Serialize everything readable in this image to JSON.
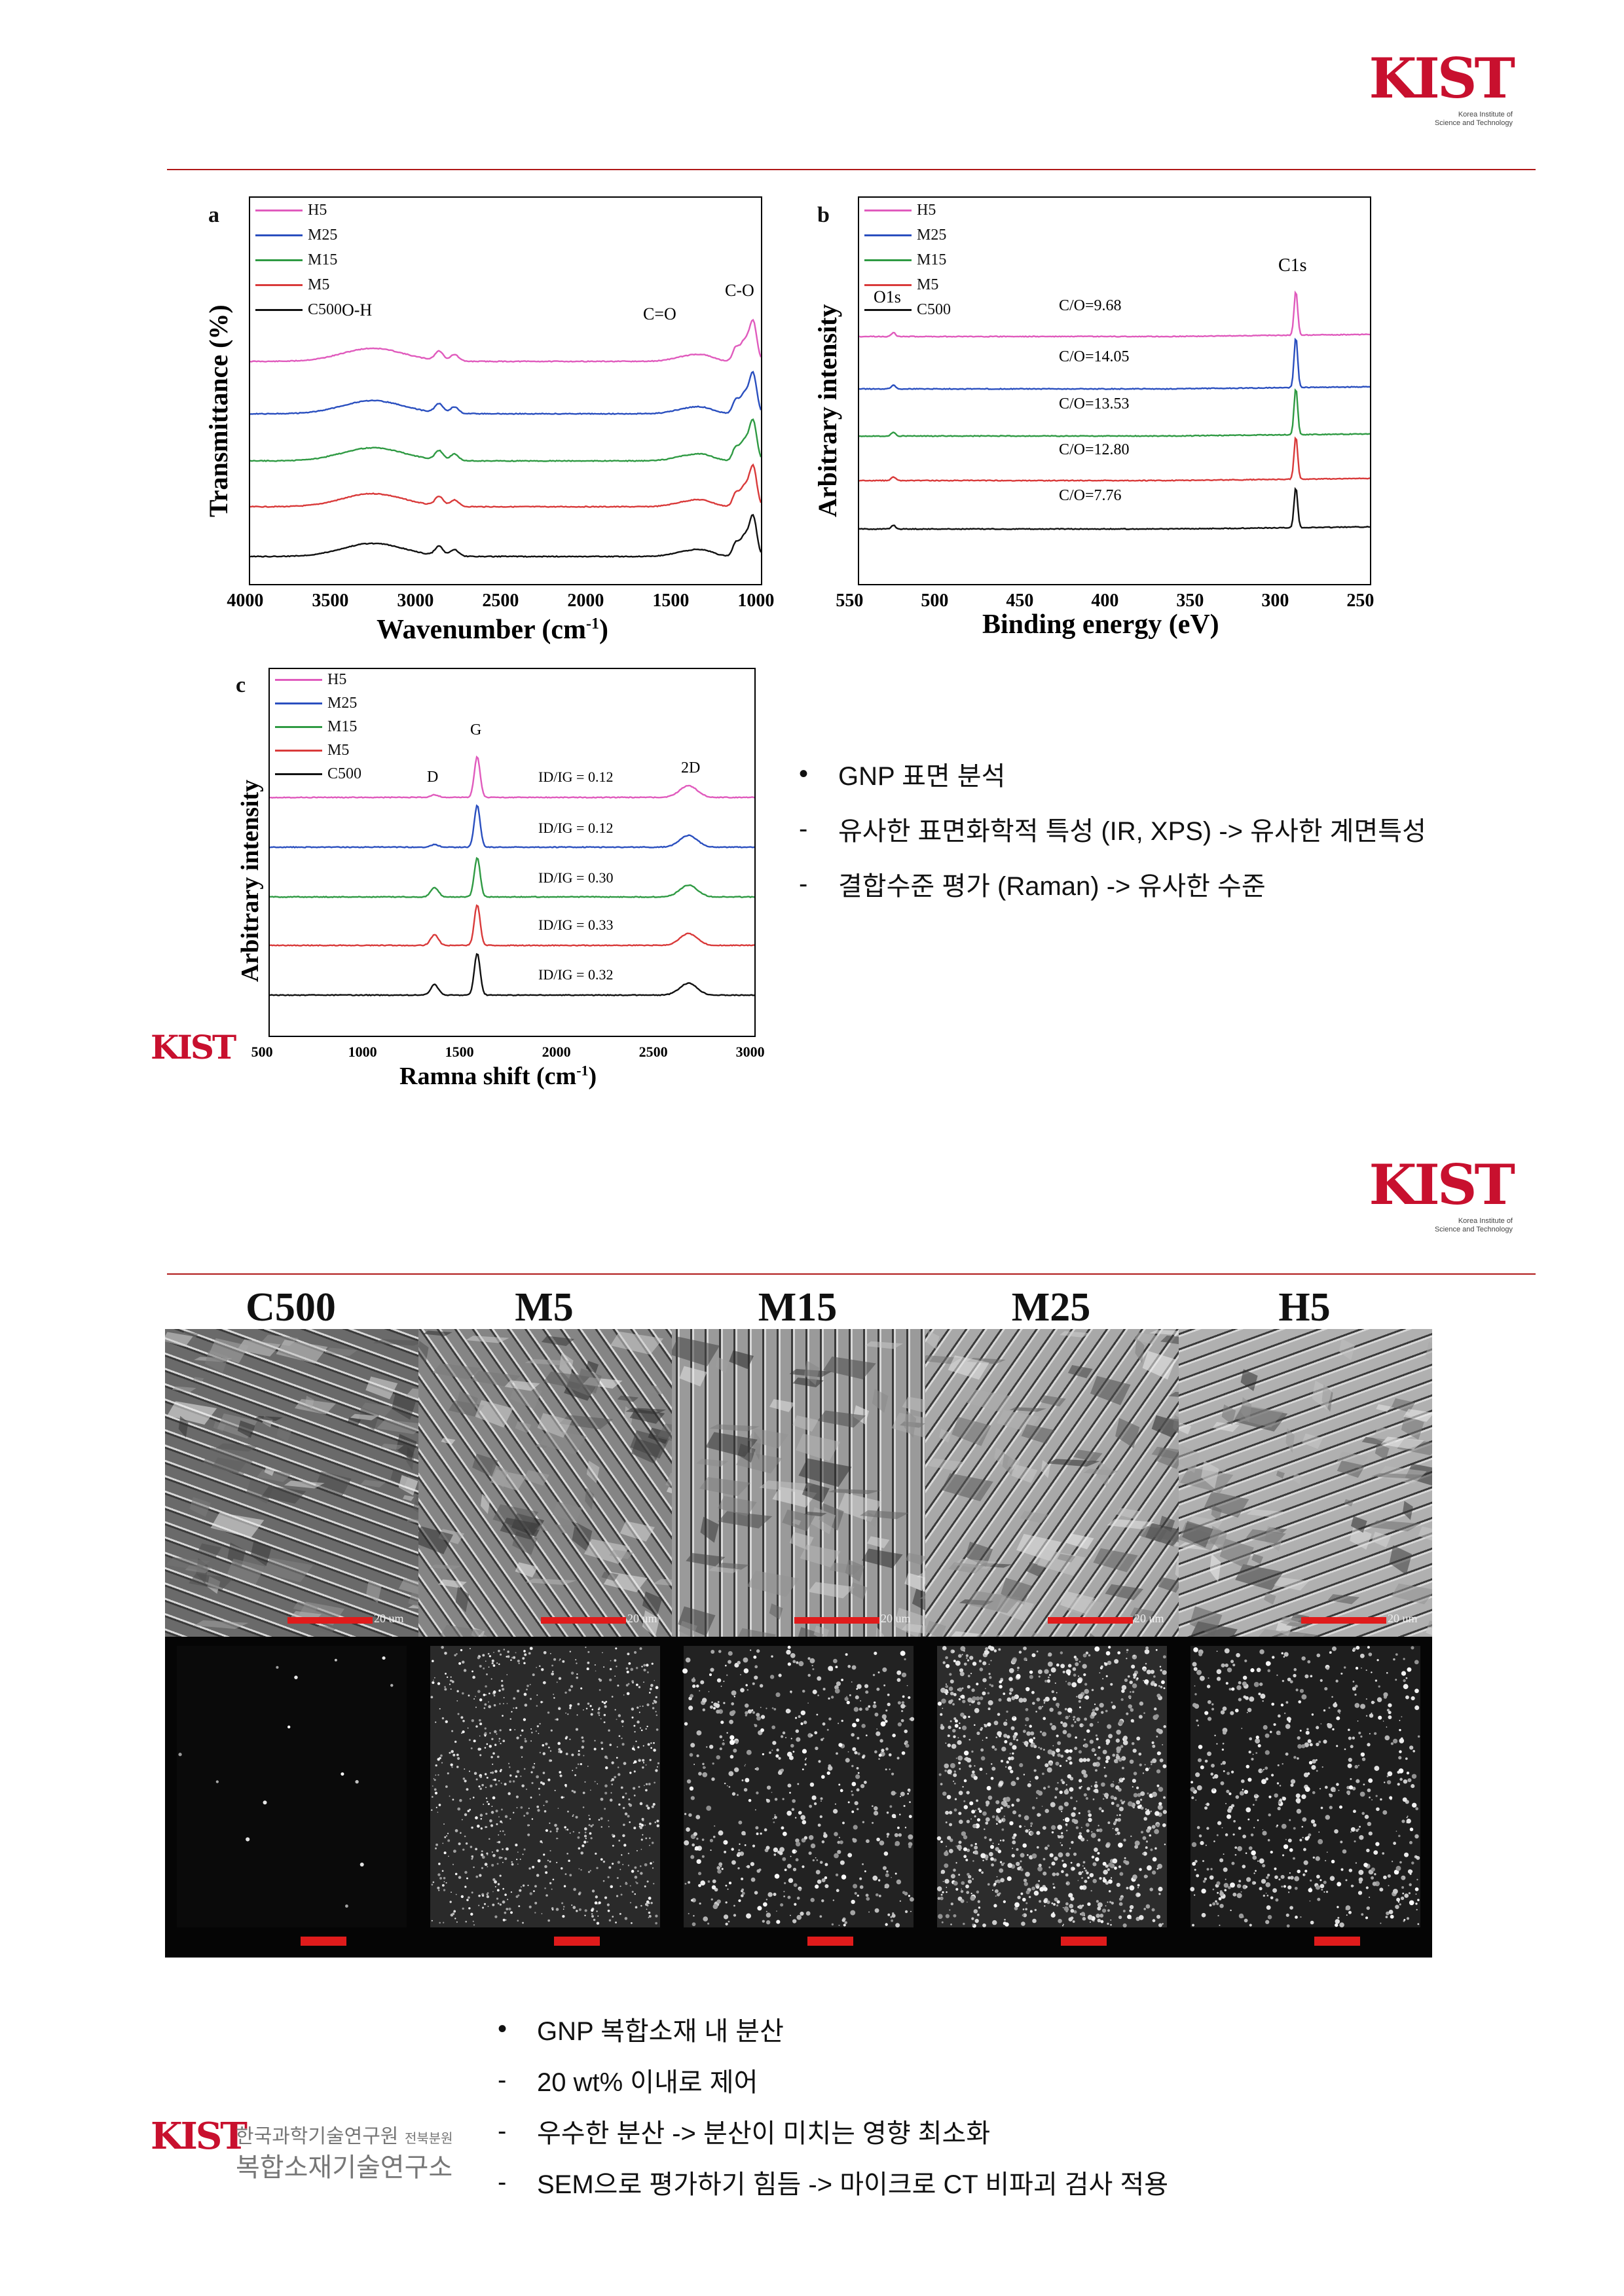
{
  "logo": {
    "mark": "KIST",
    "sub_line1": "Korea Institute of",
    "sub_line2": "Science and Technology"
  },
  "colors": {
    "H5": "#e05bbd",
    "M25": "#2a4fbf",
    "M15": "#2f9a43",
    "M5": "#d93a3a",
    "C500": "#111111",
    "accent": "#c8102e"
  },
  "legend": [
    "H5",
    "M25",
    "M15",
    "M5",
    "C500"
  ],
  "chart_data": [
    {
      "panel": "a",
      "type": "line",
      "xlabel": "Wavenumber (cm-1)",
      "xlabel_main": "Wavenumber (cm",
      "xlabel_sup": "-1",
      "xlabel_end": ")",
      "ylabel": "Transmittance (%)",
      "xlim": [
        4000,
        1000
      ],
      "xticks": [
        "4000",
        "3500",
        "3000",
        "2500",
        "2000",
        "1500",
        "1000"
      ],
      "peak_labels": [
        "O-H",
        "C=O",
        "C-O"
      ],
      "series": [
        {
          "name": "H5"
        },
        {
          "name": "M25"
        },
        {
          "name": "M15"
        },
        {
          "name": "M5"
        },
        {
          "name": "C500"
        }
      ]
    },
    {
      "panel": "b",
      "type": "line",
      "xlabel": "Binding energy (eV)",
      "ylabel": "Arbitrary intensity",
      "xlim": [
        550,
        250
      ],
      "xticks": [
        "550",
        "500",
        "450",
        "400",
        "350",
        "300",
        "250"
      ],
      "peak_labels": [
        "O1s",
        "C1s"
      ],
      "co_ratios": [
        "C/O=9.68",
        "C/O=14.05",
        "C/O=13.53",
        "C/O=12.80",
        "C/O=7.76"
      ],
      "series": [
        {
          "name": "H5",
          "C_O": 9.68
        },
        {
          "name": "M25",
          "C_O": 14.05
        },
        {
          "name": "M15",
          "C_O": 13.53
        },
        {
          "name": "M5",
          "C_O": 12.8
        },
        {
          "name": "C500",
          "C_O": 7.76
        }
      ]
    },
    {
      "panel": "c",
      "type": "line",
      "xlabel": "Ramna shift (cm-1)",
      "xlabel_main": "Ramna shift (cm",
      "xlabel_sup": "-1",
      "xlabel_end": ")",
      "ylabel": "Arbitrary intensity",
      "xlim": [
        500,
        3000
      ],
      "xticks": [
        "500",
        "1000",
        "1500",
        "2000",
        "2500",
        "3000"
      ],
      "peak_labels": [
        "D",
        "G",
        "2D"
      ],
      "id_ig": [
        "ID/IG = 0.12",
        "ID/IG = 0.12",
        "ID/IG = 0.30",
        "ID/IG = 0.33",
        "ID/IG = 0.32"
      ],
      "series": [
        {
          "name": "H5",
          "ID_IG": 0.12
        },
        {
          "name": "M25",
          "ID_IG": 0.12
        },
        {
          "name": "M15",
          "ID_IG": 0.3
        },
        {
          "name": "M5",
          "ID_IG": 0.33
        },
        {
          "name": "C500",
          "ID_IG": 0.32
        }
      ]
    }
  ],
  "bullets_top": [
    {
      "mark": "•",
      "text": "GNP 표면 분석"
    },
    {
      "mark": "-",
      "text": "유사한 표면화학적 특성 (IR, XPS) -> 유사한 계면특성"
    },
    {
      "mark": "-",
      "text": "결합수준 평가 (Raman) -> 유사한 수준"
    }
  ],
  "samples": [
    "C500",
    "M5",
    "M15",
    "M25",
    "H5"
  ],
  "scalebar_label": "20 um",
  "bullets_bottom": [
    {
      "mark": "•",
      "text": "GNP 복합소재 내 분산"
    },
    {
      "mark": "-",
      "text": "20 wt% 이내로 제어"
    },
    {
      "mark": "-",
      "text": "우수한 분산 -> 분산이 미치는 영향 최소화"
    },
    {
      "mark": "-",
      "text": "SEM으로 평가하기 힘듬 -> 마이크로 CT 비파괴 검사 적용"
    }
  ],
  "footer": {
    "org_line1": "한국과학기술연구원",
    "org_branch": "전북분원",
    "org_line2": "복합소재기술연구소"
  }
}
